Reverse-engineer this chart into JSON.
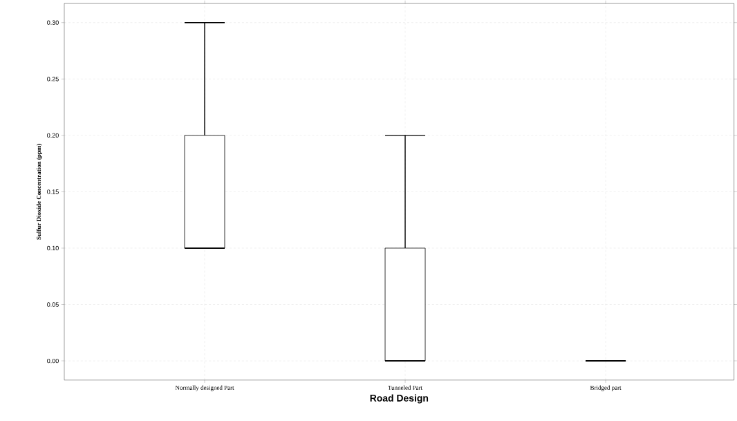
{
  "chart_data": {
    "type": "box",
    "xlabel": "Road Design",
    "ylabel": "Sulfur Dioxide Concentration (ppm)",
    "categories": [
      "Normally designed Part",
      "Tunneled Part",
      "Bridged part"
    ],
    "boxes": [
      {
        "low": 0.1,
        "q1": 0.1,
        "median": 0.1,
        "q3": 0.2,
        "high": 0.3
      },
      {
        "low": 0,
        "q1": 0,
        "median": 0,
        "q3": 0.1,
        "high": 0.2
      },
      {
        "low": 0,
        "q1": 0,
        "median": 0,
        "q3": 0,
        "high": 0
      }
    ],
    "ylim": [
      -0.017,
      0.317
    ],
    "yticks": [
      {
        "value": 0,
        "label": "0.00"
      },
      {
        "value": 0.05,
        "label": "0.05"
      },
      {
        "value": 0.1,
        "label": "0.10"
      },
      {
        "value": 0.15,
        "label": "0.15"
      },
      {
        "value": 0.2,
        "label": "0.20"
      },
      {
        "value": 0.25,
        "label": "0.25"
      },
      {
        "value": 0.3,
        "label": "0.30"
      }
    ],
    "grid": true
  }
}
